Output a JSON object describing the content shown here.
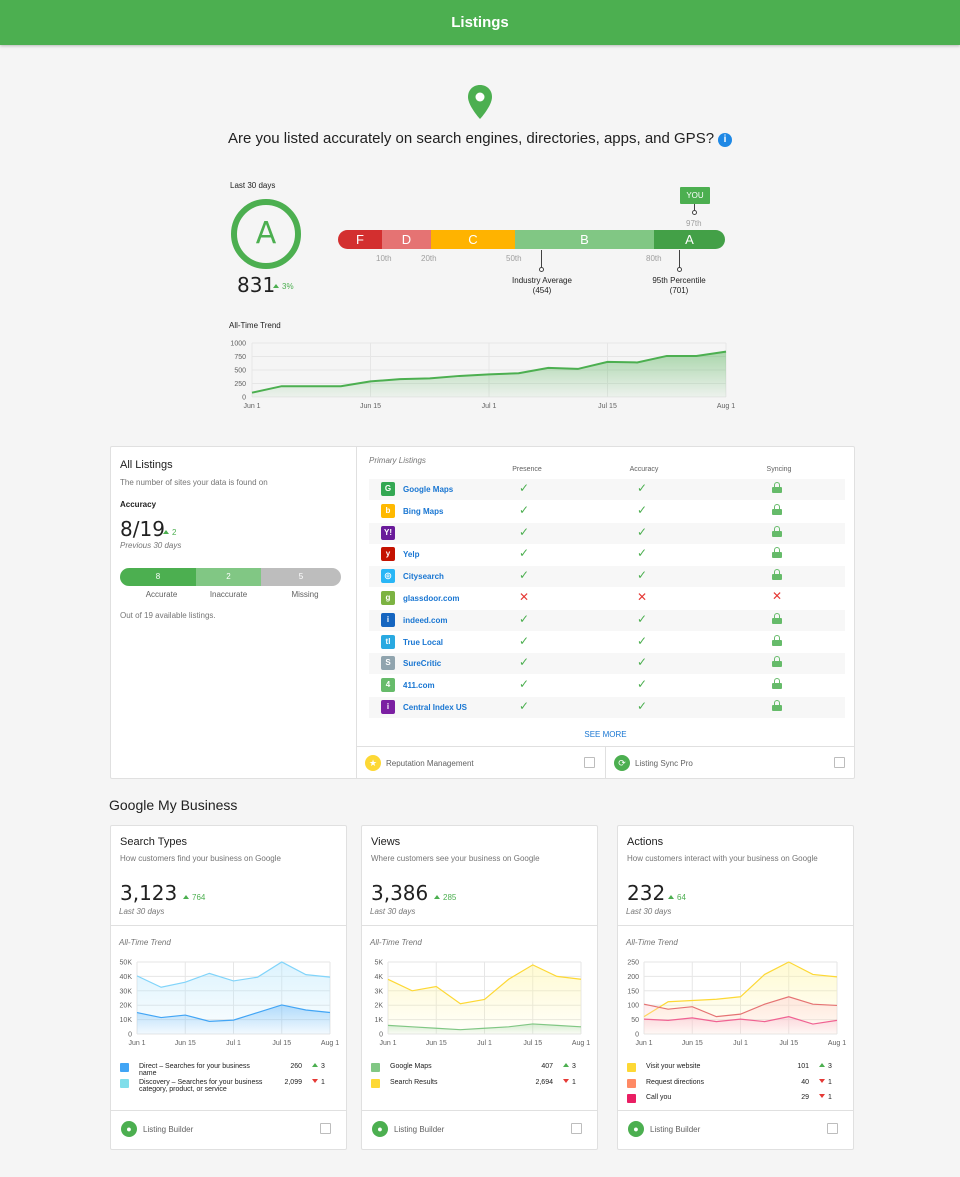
{
  "header": {
    "title": "Listings"
  },
  "hero": {
    "question": "Are you listed accurately on search engines, directories, apps, and GPS?",
    "info_icon": "info-icon",
    "pin_icon": "location-pin-icon"
  },
  "score": {
    "period": "Last 30 days",
    "grade": "A",
    "value": "831",
    "change": "3%",
    "scale": [
      {
        "label": "F",
        "color": "#d32f2f"
      },
      {
        "label": "D",
        "color": "#e57373"
      },
      {
        "label": "C",
        "color": "#ffb300"
      },
      {
        "label": "B",
        "color": "#81c784"
      },
      {
        "label": "A",
        "color": "#43a047"
      }
    ],
    "ticks": [
      "10th",
      "20th",
      "50th",
      "80th"
    ],
    "you_label": "YOU",
    "you_percentile": "97th",
    "industry_label": "Industry Average",
    "industry_value": "(454)",
    "pct95_label": "95th Percentile",
    "pct95_value": "(701)"
  },
  "trend": {
    "title": "All-Time Trend",
    "yticks": [
      "1000",
      "750",
      "500",
      "250",
      "0"
    ],
    "xticks": [
      "Jun 1",
      "Jun 15",
      "Jul 1",
      "Jul 15",
      "Aug 1"
    ]
  },
  "all_listings": {
    "title": "All Listings",
    "subtitle": "The number of sites your data is found on",
    "accuracy_label": "Accuracy",
    "accuracy_value": "8/19",
    "accuracy_change": "2",
    "period": "Previous 30 days",
    "bar": [
      {
        "value": "8",
        "label": "Accurate",
        "color": "#4caf50"
      },
      {
        "value": "2",
        "label": "Inaccurate",
        "color": "#81c784"
      },
      {
        "value": "5",
        "label": "Missing",
        "color": "#bdbdbd"
      }
    ],
    "footnote": "Out of 19 available listings."
  },
  "primary": {
    "title": "Primary Listings",
    "columns": [
      "Presence",
      "Accuracy",
      "Syncing"
    ],
    "rows": [
      {
        "name": "Google Maps",
        "icon": "google-maps-icon",
        "color": "#34a853",
        "glyph": "G",
        "presence": true,
        "accuracy": true,
        "syncing": true
      },
      {
        "name": "Bing Maps",
        "icon": "bing-icon",
        "color": "#ffb900",
        "glyph": "b",
        "presence": true,
        "accuracy": true,
        "syncing": true
      },
      {
        "name": "",
        "icon": "yahoo-icon",
        "color": "#6a1b9a",
        "glyph": "Y!",
        "presence": true,
        "accuracy": true,
        "syncing": true
      },
      {
        "name": "Yelp",
        "icon": "yelp-icon",
        "color": "#c41200",
        "glyph": "y",
        "presence": true,
        "accuracy": true,
        "syncing": true
      },
      {
        "name": "Citysearch",
        "icon": "citysearch-icon",
        "color": "#29b6f6",
        "glyph": "◎",
        "presence": true,
        "accuracy": true,
        "syncing": true
      },
      {
        "name": "glassdoor.com",
        "icon": "glassdoor-icon",
        "color": "#7cb342",
        "glyph": "g",
        "presence": false,
        "accuracy": false,
        "syncing": false
      },
      {
        "name": "indeed.com",
        "icon": "indeed-icon",
        "color": "#1565c0",
        "glyph": "i",
        "presence": true,
        "accuracy": true,
        "syncing": true
      },
      {
        "name": "True Local",
        "icon": "truelocal-icon",
        "color": "#29a9e1",
        "glyph": "tl",
        "presence": true,
        "accuracy": true,
        "syncing": true
      },
      {
        "name": "SureCritic",
        "icon": "surecritic-icon",
        "color": "#90a4ae",
        "glyph": "S",
        "presence": true,
        "accuracy": true,
        "syncing": true
      },
      {
        "name": "411.com",
        "icon": "411-icon",
        "color": "#66bb6a",
        "glyph": "4",
        "presence": true,
        "accuracy": true,
        "syncing": true
      },
      {
        "name": "Central Index US",
        "icon": "central-index-icon",
        "color": "#7b1fa2",
        "glyph": "i",
        "presence": true,
        "accuracy": true,
        "syncing": true
      }
    ],
    "see_more": "SEE MORE"
  },
  "listing_footer": {
    "left": "Reputation Management",
    "right": "Listing Sync Pro"
  },
  "gmb": {
    "section_title": "Google My Business",
    "trend_title": "All-Time Trend",
    "footer": "Listing Builder",
    "xticks": [
      "Jun 1",
      "Jun 15",
      "Jul 1",
      "Jul 15",
      "Aug 1"
    ],
    "cards": [
      {
        "title": "Search Types",
        "subtitle": "How customers find your business on Google",
        "value": "3,123",
        "change": "764",
        "period": "Last 30 days",
        "yticks": [
          "50K",
          "40K",
          "30K",
          "20K",
          "10K",
          "0"
        ],
        "legend": [
          {
            "label": "Direct – Searches for your business name",
            "label2": "",
            "value": "260",
            "change": "3",
            "dir": "up",
            "color": "#42a5f5"
          },
          {
            "label": "Discovery – Searches for your business",
            "label2": "category, product, or service",
            "value": "2,099",
            "change": "1",
            "dir": "down",
            "color": "#80deea"
          }
        ]
      },
      {
        "title": "Views",
        "subtitle": "Where customers see your business on Google",
        "value": "3,386",
        "change": "285",
        "period": "Last 30 days",
        "yticks": [
          "5K",
          "4K",
          "3K",
          "2K",
          "1K",
          "0"
        ],
        "legend": [
          {
            "label": "Google Maps",
            "label2": "",
            "value": "407",
            "change": "3",
            "dir": "up",
            "color": "#81c784"
          },
          {
            "label": "Search Results",
            "label2": "",
            "value": "2,694",
            "change": "1",
            "dir": "down",
            "color": "#fdd835"
          }
        ]
      },
      {
        "title": "Actions",
        "subtitle": "How customers interact with your business on Google",
        "value": "232",
        "change": "64",
        "period": "Last 30 days",
        "yticks": [
          "250",
          "200",
          "150",
          "100",
          "50",
          "0"
        ],
        "legend": [
          {
            "label": "Visit your website",
            "label2": "",
            "value": "101",
            "change": "3",
            "dir": "up",
            "color": "#fdd835"
          },
          {
            "label": "Request directions",
            "label2": "",
            "value": "40",
            "change": "1",
            "dir": "down",
            "color": "#ff8a65"
          },
          {
            "label": "Call you",
            "label2": "",
            "value": "29",
            "change": "1",
            "dir": "down",
            "color": "#e91e63"
          }
        ]
      }
    ]
  },
  "chart_data": [
    {
      "type": "area",
      "title": "All-Time Trend",
      "x": [
        "Jun 1",
        "Jun 4",
        "Jun 8",
        "Jun 15",
        "Jun 18",
        "Jun 22",
        "Jun 26",
        "Jul 1",
        "Jul 5",
        "Jul 8",
        "Jul 10",
        "Jul 14",
        "Jul 16",
        "Jul 20",
        "Jul 24",
        "Aug 1",
        "Aug 2"
      ],
      "series": [
        {
          "values": [
            80,
            200,
            200,
            200,
            290,
            330,
            345,
            390,
            420,
            440,
            540,
            520,
            650,
            640,
            760,
            760,
            840
          ]
        }
      ],
      "ylim": [
        0,
        1000
      ]
    },
    {
      "type": "area",
      "title": "Search Types",
      "x": [
        "Jun 1",
        "Jun 8",
        "Jun 15",
        "Jun 22",
        "Jul 1",
        "Jul 8",
        "Jul 15",
        "Jul 22",
        "Aug 1"
      ],
      "series": [
        {
          "name": "Direct – Searches for your business name",
          "values": [
            17000,
            13000,
            15000,
            10000,
            11000,
            17000,
            23000,
            19000,
            17000
          ]
        },
        {
          "name": "Discovery – Searches for your business category, product, or service",
          "values": [
            46000,
            37000,
            41000,
            48000,
            42000,
            45000,
            57000,
            47000,
            45000
          ]
        }
      ],
      "ylim": [
        0,
        57000
      ]
    },
    {
      "type": "area",
      "title": "Views",
      "x": [
        "Jun 1",
        "Jun 8",
        "Jun 15",
        "Jun 22",
        "Jul 1",
        "Jul 8",
        "Jul 15",
        "Jul 22",
        "Aug 1"
      ],
      "series": [
        {
          "name": "Google Maps",
          "values": [
            600,
            500,
            400,
            300,
            400,
            500,
            700,
            600,
            500
          ]
        },
        {
          "name": "Search Results",
          "values": [
            3800,
            3000,
            3300,
            2100,
            2400,
            3800,
            4800,
            4000,
            3800
          ]
        }
      ],
      "ylim": [
        0,
        5000
      ]
    },
    {
      "type": "area",
      "title": "Actions",
      "x": [
        "Jun 1",
        "Jun 8",
        "Jun 15",
        "Jun 22",
        "Jul 1",
        "Jul 8",
        "Jul 15",
        "Jul 22",
        "Aug 1"
      ],
      "series": [
        {
          "name": "Visit your website",
          "values": [
            70,
            130,
            135,
            140,
            150,
            240,
            290,
            240,
            230
          ]
        },
        {
          "name": "Request directions",
          "values": [
            120,
            100,
            110,
            70,
            80,
            120,
            150,
            120,
            115
          ]
        },
        {
          "name": "Call you",
          "values": [
            60,
            55,
            65,
            50,
            60,
            50,
            70,
            40,
            55
          ]
        }
      ],
      "ylim": [
        0,
        290
      ]
    }
  ]
}
